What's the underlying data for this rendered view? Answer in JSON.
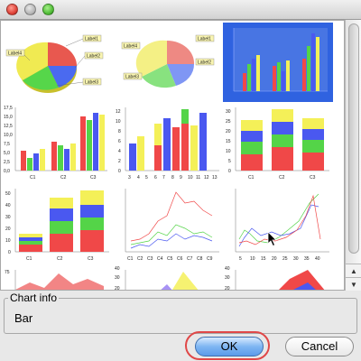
{
  "window": {
    "title": ""
  },
  "gallery": {
    "selected_index": 2,
    "pie": {
      "slices": [
        {
          "label": "Label1",
          "value": 22,
          "color": "#e8584f"
        },
        {
          "label": "Label2",
          "value": 24,
          "color": "#4a6af0"
        },
        {
          "label": "Label3",
          "value": 26,
          "color": "#56d64a"
        },
        {
          "label": "Label4",
          "value": 28,
          "color": "#f0ea52"
        }
      ],
      "label_texts": [
        "Label1",
        "Label2",
        "Label3",
        "Label4"
      ]
    },
    "bar3d": {
      "categories": [
        "C1",
        "C2",
        "C3"
      ],
      "yticks": [
        "0,0",
        "2,5",
        "5,0",
        "7,5",
        "10,0",
        "12,5",
        "15,0",
        "17,5"
      ]
    },
    "histogram": {
      "xticks": [
        "3",
        "4",
        "5",
        "6",
        "7",
        "8",
        "9",
        "10",
        "11",
        "12",
        "13"
      ],
      "yticks": [
        "0",
        "2",
        "4",
        "6",
        "8",
        "10",
        "12"
      ]
    },
    "stacked": {
      "categories": [
        "C1",
        "C2",
        "C3"
      ],
      "yticks": [
        "0",
        "5",
        "10",
        "15",
        "20",
        "25",
        "30"
      ]
    },
    "stacked3d": {
      "categories": [
        "C1",
        "C2",
        "C3"
      ],
      "yticks": [
        "0",
        "10",
        "20",
        "30",
        "40",
        "50"
      ]
    },
    "line": {
      "categories": [
        "C1",
        "C2",
        "C3",
        "C4",
        "C5",
        "C6",
        "C7",
        "C8",
        "C9"
      ],
      "yticks": [
        "5",
        "10",
        "15",
        "20",
        "25",
        "30",
        "35",
        "40",
        "45",
        "50",
        "55",
        "60"
      ]
    },
    "xy": {
      "xticks": [
        "5",
        "10",
        "15",
        "20",
        "25",
        "30",
        "35",
        "40"
      ],
      "yticks": [
        "5",
        "10",
        "15",
        "20",
        "25",
        "30",
        "35"
      ]
    },
    "area": {
      "yticks": [
        "25",
        "50",
        "75"
      ]
    },
    "area2": {
      "yticks": [
        "10",
        "20",
        "30",
        "40"
      ]
    },
    "area3": {
      "yticks": [
        "10",
        "20",
        "30",
        "40"
      ]
    }
  },
  "chart_info": {
    "legend": "Chart info",
    "value": "Bar"
  },
  "buttons": {
    "ok": "OK",
    "cancel": "Cancel"
  },
  "icons": {
    "close": "close-icon",
    "minimize": "minimize-icon",
    "zoom": "zoom-icon",
    "scroll_up": "scroll-up-arrow-icon",
    "scroll_down": "scroll-down-arrow-icon",
    "cursor": "mouse-cursor-icon"
  },
  "colors": {
    "red": "#f04848",
    "green": "#54d448",
    "blue": "#4a58f0",
    "yellow": "#f4f058",
    "selection": "#2f62e0",
    "ok_highlight": "#e04848"
  }
}
